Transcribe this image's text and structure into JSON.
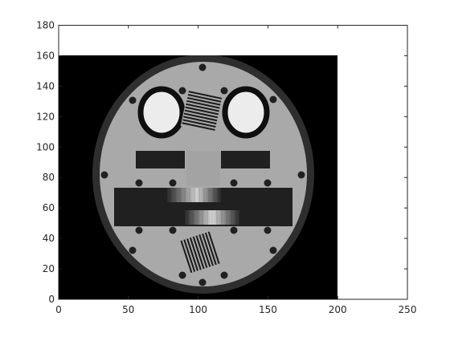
{
  "chart_data": {
    "type": "heatmap",
    "title": "",
    "xlabel": "",
    "ylabel": "",
    "xlim": [
      0,
      250
    ],
    "ylim": [
      0,
      180
    ],
    "xticks": [
      0,
      50,
      100,
      150,
      200,
      250
    ],
    "yticks": [
      0,
      20,
      40,
      60,
      80,
      100,
      120,
      140,
      160,
      180
    ],
    "grid": false,
    "legend": "none",
    "colormap": "gray",
    "image_extent": {
      "x": [
        0,
        200
      ],
      "y": [
        0,
        160
      ]
    },
    "image_content": "grayscale test phantom",
    "colors": {
      "background": "#000000",
      "ring": "#2e2e2e",
      "face": "#a9a9a9",
      "eye_fill": "#ececec",
      "eye_rim": "#0f0f0f",
      "bars": "#202020",
      "dots": "#202020"
    }
  }
}
